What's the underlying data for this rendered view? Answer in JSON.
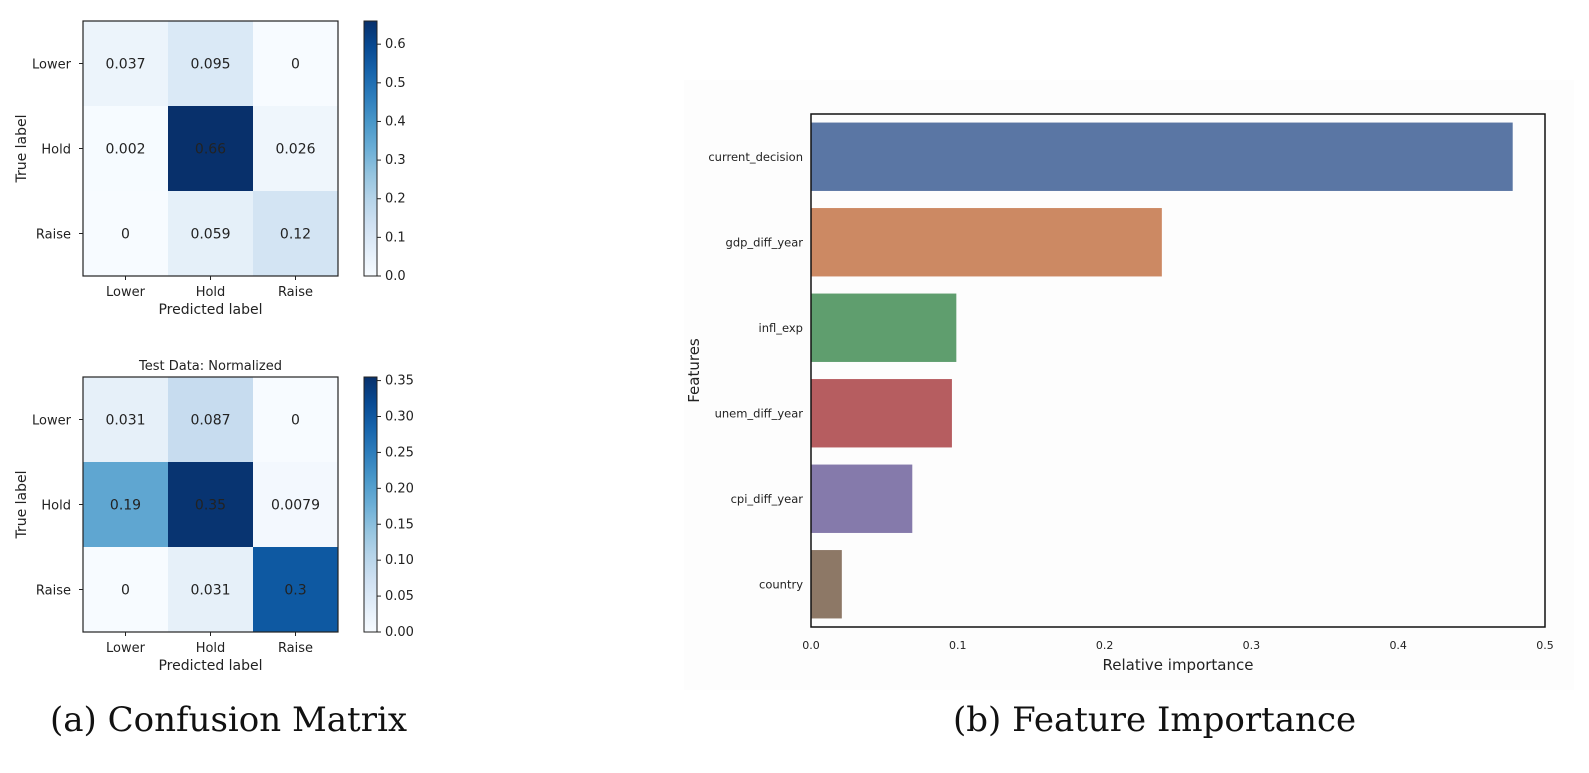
{
  "captions": {
    "left": "(a) Confusion Matrix",
    "right": "(b) Feature Importance"
  },
  "chart_data": [
    {
      "type": "heatmap",
      "title": "",
      "rows": [
        "Lower",
        "Hold",
        "Raise"
      ],
      "cols": [
        "Lower",
        "Hold",
        "Raise"
      ],
      "values": [
        [
          0.037,
          0.095,
          0
        ],
        [
          0.002,
          0.66,
          0.026
        ],
        [
          0,
          0.059,
          0.12
        ]
      ],
      "cell_labels": [
        [
          "0.037",
          "0.095",
          "0"
        ],
        [
          "0.002",
          "0.66",
          "0.026"
        ],
        [
          "0",
          "0.059",
          "0.12"
        ]
      ],
      "xlabel": "Predicted label",
      "ylabel": "True label",
      "colorbar": {
        "min": 0,
        "max": 0.66,
        "ticks": [
          0.0,
          0.1,
          0.2,
          0.3,
          0.4,
          0.5,
          0.6
        ],
        "tick_labels": [
          "0.0",
          "0.1",
          "0.2",
          "0.3",
          "0.4",
          "0.5",
          "0.6"
        ]
      },
      "colormap": "Blues"
    },
    {
      "type": "heatmap",
      "title": "Test Data: Normalized",
      "rows": [
        "Lower",
        "Hold",
        "Raise"
      ],
      "cols": [
        "Lower",
        "Hold",
        "Raise"
      ],
      "values": [
        [
          0.031,
          0.087,
          0
        ],
        [
          0.19,
          0.35,
          0.0079
        ],
        [
          0,
          0.031,
          0.3
        ]
      ],
      "cell_labels": [
        [
          "0.031",
          "0.087",
          "0"
        ],
        [
          "0.19",
          "0.35",
          "0.0079"
        ],
        [
          "0",
          "0.031",
          "0.3"
        ]
      ],
      "xlabel": "Predicted label",
      "ylabel": "True label",
      "colorbar": {
        "min": 0,
        "max": 0.355,
        "ticks": [
          0.0,
          0.05,
          0.1,
          0.15,
          0.2,
          0.25,
          0.3,
          0.35
        ],
        "tick_labels": [
          "0.00",
          "0.05",
          "0.10",
          "0.15",
          "0.20",
          "0.25",
          "0.30",
          "0.35"
        ]
      },
      "colormap": "Blues"
    },
    {
      "type": "bar",
      "orientation": "horizontal",
      "title": "",
      "categories": [
        "current_decision",
        "gdp_diff_year",
        "infl_exp",
        "unem_diff_year",
        "cpi_diff_year",
        "country"
      ],
      "values": [
        0.478,
        0.239,
        0.099,
        0.096,
        0.069,
        0.021
      ],
      "colors": [
        "#5a76a4",
        "#cc8963",
        "#5f9e6e",
        "#b65d60",
        "#857aab",
        "#8d7866"
      ],
      "xlabel": "Relative importance",
      "ylabel": "Features",
      "xlim": [
        0,
        0.5
      ],
      "xticks": [
        0.0,
        0.1,
        0.2,
        0.3,
        0.4,
        0.5
      ],
      "xtick_labels": [
        "0.0",
        "0.1",
        "0.2",
        "0.3",
        "0.4",
        "0.5"
      ],
      "grid": false
    }
  ]
}
